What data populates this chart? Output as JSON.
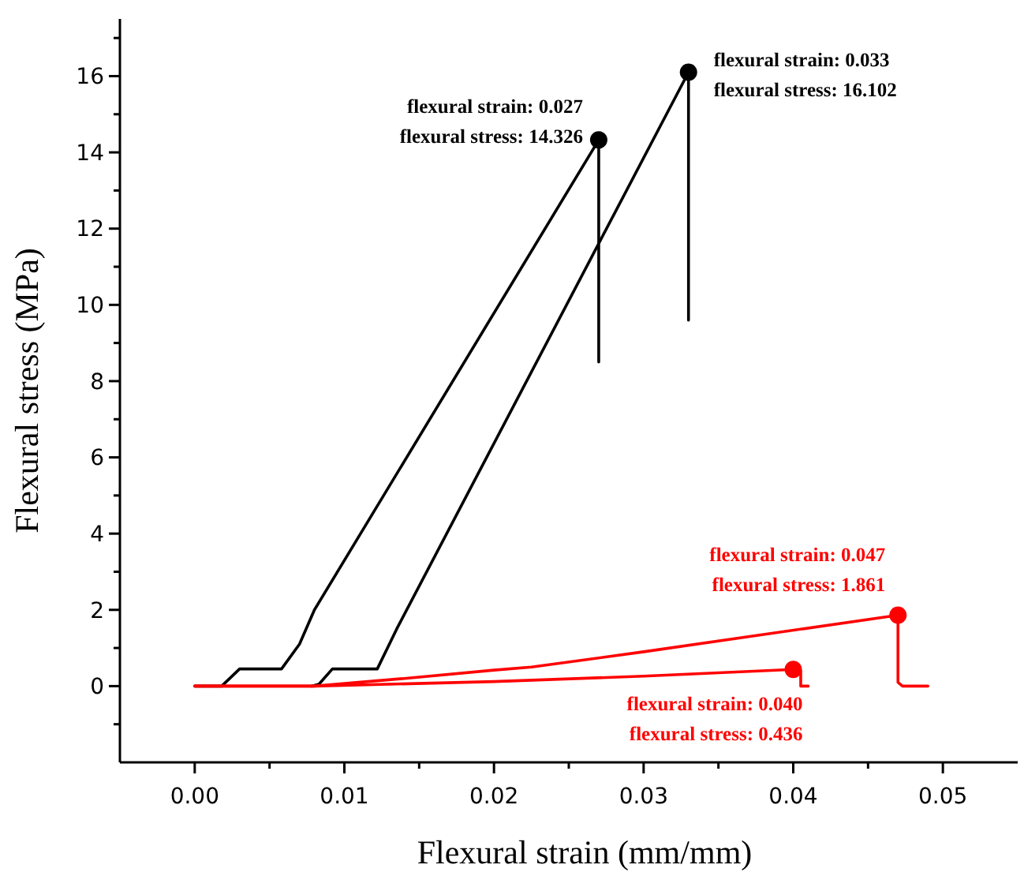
{
  "chart_data": {
    "type": "line",
    "xlabel": "Flexural strain (mm/mm)",
    "ylabel": "Flexural stress (MPa)",
    "xlim": [
      -0.005,
      0.055
    ],
    "ylim": [
      -2,
      17.5
    ],
    "xticks": [
      {
        "value": 0,
        "label": "0.00"
      },
      {
        "value": 0.005,
        "label": null
      },
      {
        "value": 0.01,
        "label": "0.01"
      },
      {
        "value": 0.015,
        "label": null
      },
      {
        "value": 0.02,
        "label": "0.02"
      },
      {
        "value": 0.025,
        "label": null
      },
      {
        "value": 0.03,
        "label": "0.03"
      },
      {
        "value": 0.035,
        "label": null
      },
      {
        "value": 0.04,
        "label": "0.04"
      },
      {
        "value": 0.045,
        "label": null
      },
      {
        "value": 0.05,
        "label": "0.05"
      }
    ],
    "yticks": [
      {
        "value": -1,
        "label": null
      },
      0,
      {
        "value": 1,
        "label": null
      },
      2,
      {
        "value": 3,
        "label": null
      },
      4,
      {
        "value": 5,
        "label": null
      },
      6,
      {
        "value": 7,
        "label": null
      },
      8,
      {
        "value": 9,
        "label": null
      },
      10,
      {
        "value": 11,
        "label": null
      },
      12,
      {
        "value": 13,
        "label": null
      },
      14,
      {
        "value": 15,
        "label": null
      },
      16,
      {
        "value": 17,
        "label": null
      }
    ],
    "grid": false,
    "line_style": "solid",
    "series": [
      {
        "color": "#000000",
        "marker": "none",
        "x": [
          0,
          0.0018,
          0.003,
          0.0058,
          0.007,
          0.008,
          0.027,
          0.027
        ],
        "values": [
          0,
          0,
          0.45,
          0.45,
          1.1,
          2,
          14.326,
          8.5
        ]
      },
      {
        "color": "#000000",
        "marker": "none",
        "x": [
          0.0078,
          0.0083,
          0.0092,
          0.0122,
          0.0135,
          0.033,
          0.033
        ],
        "values": [
          0,
          0.05,
          0.45,
          0.45,
          1.5,
          16.102,
          9.6
        ]
      },
      {
        "color": "#ff0000",
        "marker": "none",
        "x": [
          0,
          0.008,
          0.014,
          0.02,
          0.0225,
          0.03,
          0.047,
          0.047,
          0.0473,
          0.049
        ],
        "values": [
          0,
          0,
          0.2,
          0.42,
          0.5,
          0.9,
          1.861,
          0.1,
          0,
          0
        ]
      },
      {
        "color": "#ff0000",
        "marker": "none",
        "x": [
          0,
          0.008,
          0.02,
          0.03,
          0.04,
          0.0405,
          0.0405,
          0.041
        ],
        "values": [
          0,
          0,
          0.12,
          0.26,
          0.436,
          0.4,
          0,
          0
        ]
      },
      {
        "type": "scatter",
        "color": "#000000",
        "marker": "circle",
        "x": [
          0.027,
          0.033
        ],
        "values": [
          14.326,
          16.102
        ]
      },
      {
        "type": "scatter",
        "color": "#ff0000",
        "marker": "circle",
        "x": [
          0.047,
          0.04
        ],
        "values": [
          1.861,
          0.436
        ]
      }
    ],
    "annotations": [
      {
        "text": "flexural strain: 0.027\nflexural stress: 14.326",
        "x": 0.027,
        "y": 14.326
      },
      {
        "text": "flexural strain: 0.033\nflexural stress: 16.102",
        "x": 0.033,
        "y": 16.102
      },
      {
        "text": "flexural strain: 0.047\nflexural stress: 1.861",
        "x": 0.047,
        "y": 1.861
      },
      {
        "text": "flexural strain: 0.040\nflexural stress: 0.436",
        "x": 0.04,
        "y": 0.436
      }
    ]
  }
}
